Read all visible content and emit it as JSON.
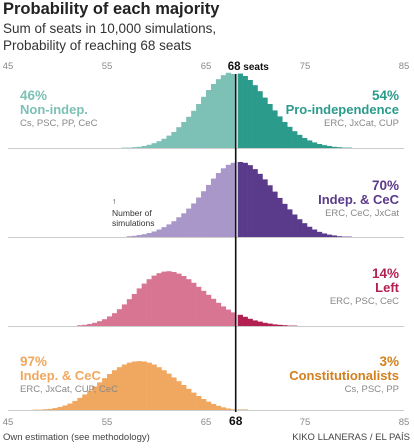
{
  "title": "Probability of each majority",
  "subtitle_line1": "Sum of seats in 10,000 simulations,",
  "subtitle_line2": "Probability of reaching 68 seats",
  "footnote": "Own estimation (see methodology)",
  "credit": "KIKO LLANERAS / EL PAÍS",
  "chart_data": {
    "type": "bar",
    "threshold": 68,
    "threshold_label_top": "68",
    "threshold_label_top_unit": "seats",
    "threshold_label_bottom": "68",
    "x_ticks": [
      45,
      55,
      65,
      75,
      85
    ],
    "xlim": [
      45,
      85
    ],
    "annotation_lines": [
      "Number of",
      "simulations"
    ],
    "annotation_arrow": "↑",
    "panels": [
      {
        "left_pct": "46%",
        "left_name": "Non-indep.",
        "left_parties": "Cs, PSC, PP, CeC",
        "right_pct": "54%",
        "right_name": "Pro-independence",
        "right_parties": "ERC, JxCat, CUP",
        "left_color": "#7cc0b6",
        "right_color": "#2b9b8c",
        "below_values": [
          1,
          1,
          2,
          3,
          5,
          8,
          12,
          17,
          23,
          31,
          40,
          52,
          65,
          78,
          93,
          110,
          128,
          145,
          160,
          172,
          182,
          188,
          185
        ],
        "above_values": [
          186,
          180,
          170,
          157,
          142,
          126,
          110,
          94,
          79,
          65,
          53,
          42,
          33,
          25,
          19,
          14,
          10,
          7,
          5,
          3,
          2,
          1,
          1
        ]
      },
      {
        "left_pct": "",
        "left_name": "",
        "left_parties": "",
        "right_pct": "70%",
        "right_name": "Indep. & CeC",
        "right_parties": "ERC, CeC, JxCat",
        "left_color": "#a897c8",
        "right_color": "#5a3a8a",
        "below_values": [
          2,
          3,
          5,
          7,
          10,
          14,
          19,
          25,
          32,
          40,
          50,
          60,
          72,
          85,
          100,
          116,
          132,
          148,
          162,
          174,
          183,
          188
        ],
        "above_values": [
          190,
          188,
          182,
          172,
          160,
          146,
          131,
          115,
          99,
          84,
          70,
          57,
          45,
          35,
          26,
          19,
          13,
          9,
          6,
          4,
          2,
          1,
          1
        ]
      },
      {
        "left_pct": "",
        "left_name": "",
        "left_parties": "",
        "right_pct": "14%",
        "right_name": "Left",
        "right_parties": "ERC, PSC, CeC",
        "left_color": "#d77593",
        "right_color": "#b31f51",
        "below_values": [
          2,
          3,
          5,
          8,
          12,
          17,
          24,
          32,
          42,
          54,
          67,
          80,
          94,
          106,
          117,
          126,
          132,
          136,
          137,
          135,
          131,
          125,
          117,
          108,
          98,
          88,
          78,
          68,
          58,
          49,
          41,
          34
        ],
        "above_values": [
          28,
          23,
          18,
          14,
          11,
          8,
          6,
          4,
          3,
          2,
          1,
          1
        ]
      },
      {
        "left_pct": "97%",
        "left_name": "Indep. & CeC",
        "left_parties": "ERC, JxCat, CUP, CeC",
        "right_pct": "3%",
        "right_name": "Constitutionalists",
        "right_parties": "Cs, PSC, PP",
        "left_color": "#f0a860",
        "right_color": "#d2801e",
        "below_values": [
          1,
          1,
          2,
          3,
          5,
          8,
          12,
          17,
          24,
          32,
          41,
          51,
          62,
          73,
          84,
          95,
          105,
          113,
          120,
          125,
          128,
          129,
          128,
          125,
          120,
          113,
          105,
          96,
          86,
          76,
          66,
          56,
          46,
          37,
          29,
          22,
          16,
          11,
          7,
          4,
          2
        ],
        "above_values": [
          1,
          1
        ]
      }
    ]
  }
}
